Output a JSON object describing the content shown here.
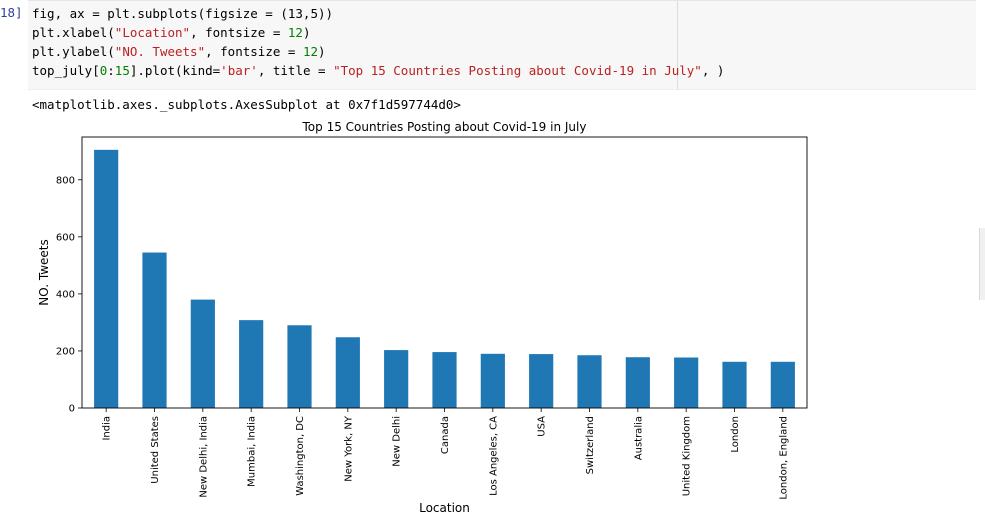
{
  "cell": {
    "prompt": "18]",
    "code_lines": [
      [
        {
          "t": "fig, ax = plt.subplots(figsize = (13,5))",
          "c": ""
        }
      ],
      [
        {
          "t": "plt.xlabel(",
          "c": ""
        },
        {
          "t": "\"Location\"",
          "c": "s"
        },
        {
          "t": ", fontsize = ",
          "c": ""
        },
        {
          "t": "12",
          "c": "n"
        },
        {
          "t": ")",
          "c": ""
        }
      ],
      [
        {
          "t": "plt.ylabel(",
          "c": ""
        },
        {
          "t": "\"NO. Tweets\"",
          "c": "s"
        },
        {
          "t": ", fontsize = ",
          "c": ""
        },
        {
          "t": "12",
          "c": "n"
        },
        {
          "t": ")",
          "c": ""
        }
      ],
      [
        {
          "t": "top_july[",
          "c": ""
        },
        {
          "t": "0",
          "c": "n"
        },
        {
          "t": ":",
          "c": ""
        },
        {
          "t": "15",
          "c": "n"
        },
        {
          "t": "].plot(kind=",
          "c": ""
        },
        {
          "t": "'bar'",
          "c": "s"
        },
        {
          "t": ", title = ",
          "c": ""
        },
        {
          "t": "\"Top 15 Countries Posting about Covid-19 in July\"",
          "c": "s"
        },
        {
          "t": ", )",
          "c": ""
        }
      ]
    ],
    "output_repr": "<matplotlib.axes._subplots.AxesSubplot at 0x7f1d597744d0>"
  },
  "chart_data": {
    "type": "bar",
    "title": "Top 15 Countries Posting about Covid-19 in July",
    "xlabel": "Location",
    "ylabel": "NO. Tweets",
    "categories": [
      "India",
      "United States",
      "New Delhi, India",
      "Mumbai, India",
      "Washington, DC",
      "New York, NY",
      "New Delhi",
      "Canada",
      "Los Angeles, CA",
      "USA",
      "Switzerland",
      "Australia",
      "United Kingdom",
      "London",
      "London, England"
    ],
    "values": [
      905,
      545,
      380,
      308,
      290,
      248,
      203,
      196,
      190,
      189,
      185,
      178,
      177,
      162,
      162
    ],
    "ylim": [
      0,
      950
    ],
    "yticks": [
      0,
      200,
      400,
      600,
      800
    ],
    "bar_color": "#1f77b4",
    "grid": false,
    "legend": false
  }
}
